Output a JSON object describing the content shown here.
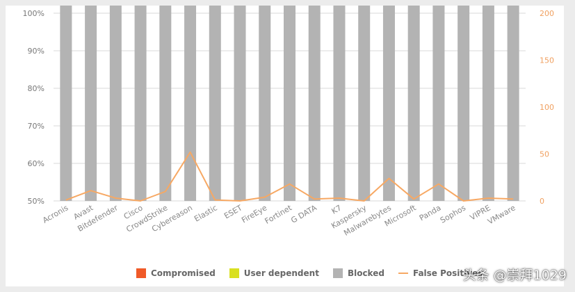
{
  "chart_data": {
    "type": "bar",
    "stacked": true,
    "categories": [
      "Acronis",
      "Avast",
      "Bitdefender",
      "Cisco",
      "CrowdStrike",
      "Cybereason",
      "Elastic",
      "ESET",
      "FireEye",
      "Fortinet",
      "G DATA",
      "K7",
      "Kaspersky",
      "Malwarebytes",
      "Microsoft",
      "Panda",
      "Sophos",
      "VIPRE",
      "VMware"
    ],
    "series": [
      {
        "name": "Blocked",
        "color": "#b3b3b3",
        "values": [
          96.9,
          99.6,
          100,
          97.1,
          100,
          97.5,
          96.4,
          99.1,
          99.3,
          98.1,
          99.5,
          100,
          99.3,
          99.3,
          100,
          99.6,
          97.2,
          99.6,
          98.6
        ]
      },
      {
        "name": "User dependent",
        "color": "#d9e021",
        "values": [
          0,
          0,
          0,
          0,
          0,
          0,
          0,
          0,
          0,
          0,
          0,
          0,
          0,
          0,
          0,
          0,
          0.5,
          0,
          0
        ]
      },
      {
        "name": "Compromised",
        "color": "#f05a28",
        "values": [
          3.1,
          0.4,
          0,
          2.9,
          0,
          2.5,
          3.6,
          0.9,
          0.7,
          1.9,
          0.5,
          0,
          0.7,
          0.7,
          0,
          0.4,
          2.3,
          0.4,
          1.4
        ]
      }
    ],
    "line_series": {
      "name": "False Positives",
      "color": "#f7a863",
      "axis": "right",
      "values": [
        1,
        11,
        3,
        0,
        10,
        52,
        1,
        0,
        4,
        18,
        2,
        3,
        0,
        24,
        2,
        18,
        0,
        3,
        2
      ]
    },
    "ylim": [
      50,
      100
    ],
    "y_ticks": [
      "50%",
      "60%",
      "70%",
      "80%",
      "90%",
      "100%"
    ],
    "y2lim": [
      0,
      200
    ],
    "y2_ticks": [
      "0",
      "50",
      "100",
      "150",
      "200"
    ],
    "legend_position": "bottom",
    "grid": true
  },
  "legend": [
    {
      "label": "Compromised",
      "color": "#f05a28",
      "kind": "box"
    },
    {
      "label": "User dependent",
      "color": "#d9e021",
      "kind": "box"
    },
    {
      "label": "Blocked",
      "color": "#b3b3b3",
      "kind": "box"
    },
    {
      "label": "False Positives",
      "color": "#f7a863",
      "kind": "line"
    }
  ],
  "watermark": "头条 @崇拜1029"
}
